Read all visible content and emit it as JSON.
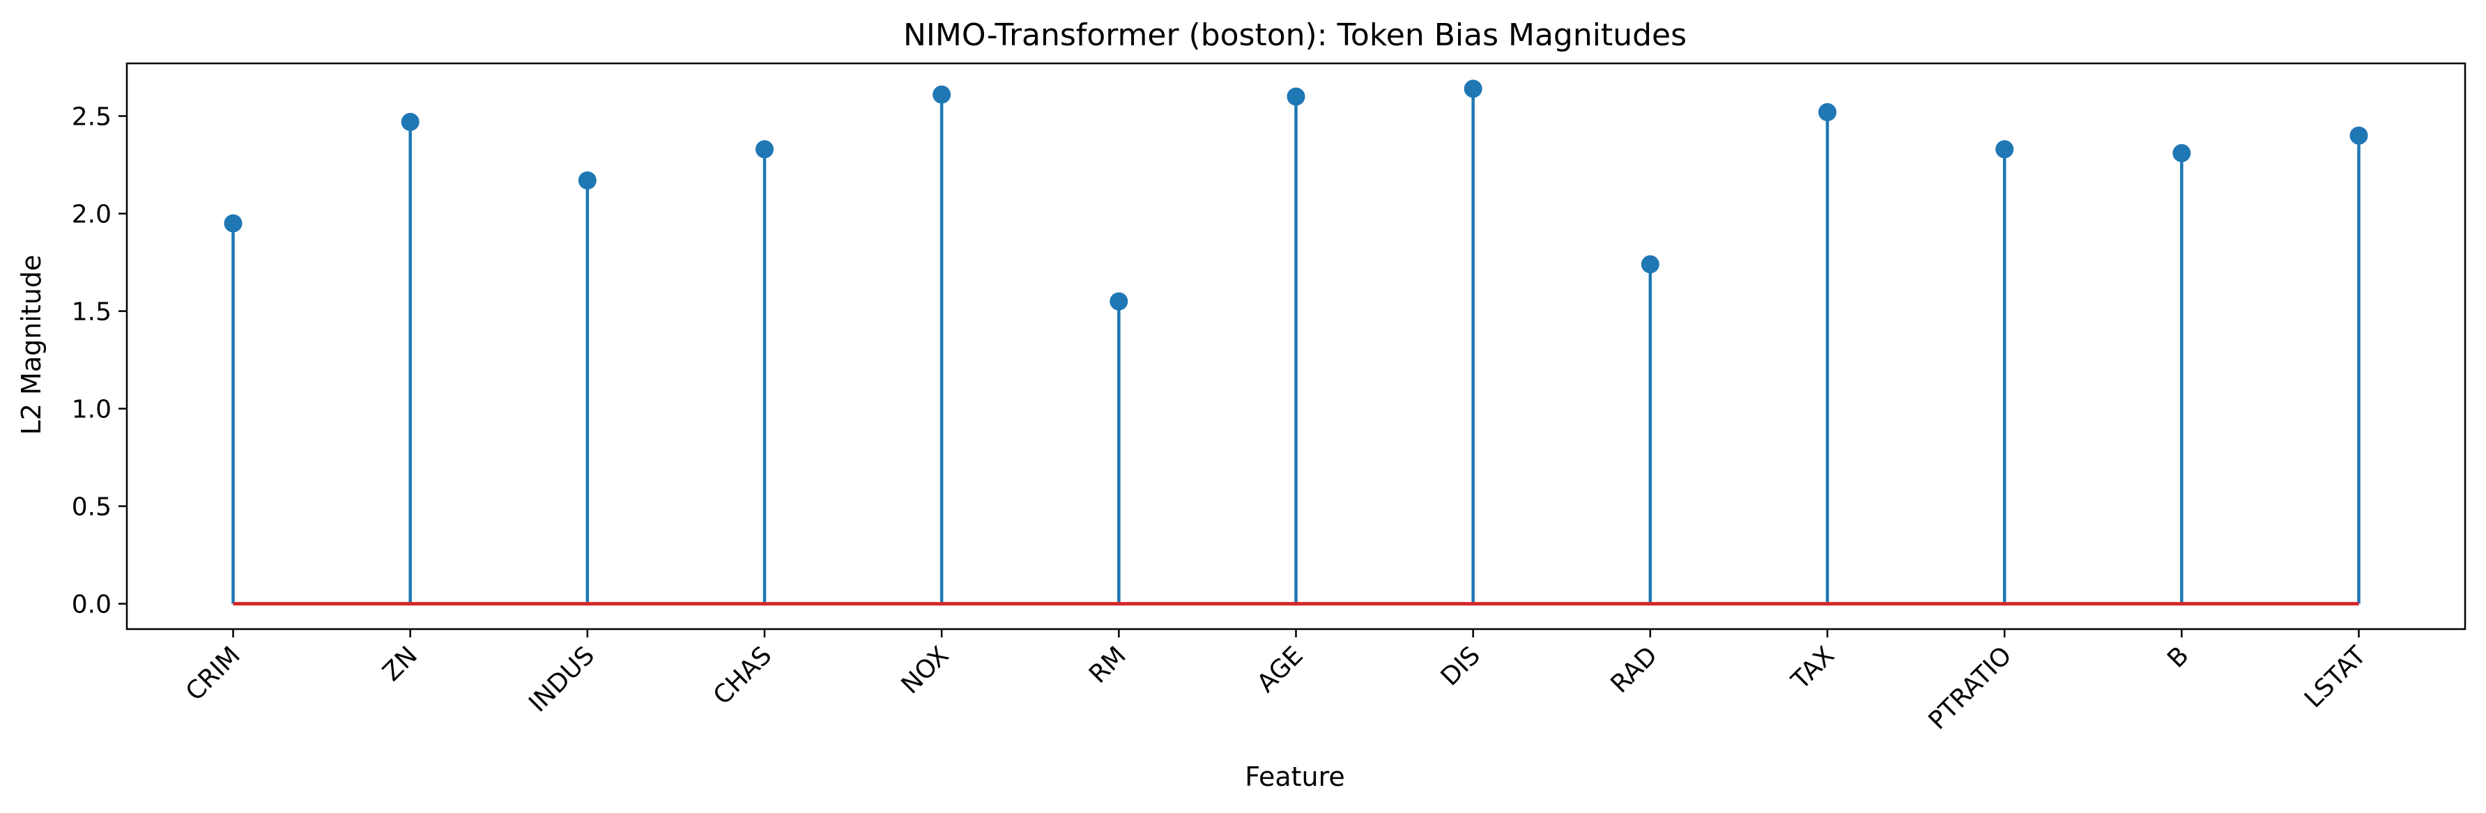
{
  "chart_data": {
    "type": "stem",
    "title": "NIMO-Transformer (boston): Token Bias Magnitudes",
    "xlabel": "Feature",
    "ylabel": "L2 Magnitude",
    "categories": [
      "CRIM",
      "ZN",
      "INDUS",
      "CHAS",
      "NOX",
      "RM",
      "AGE",
      "DIS",
      "RAD",
      "TAX",
      "PTRATIO",
      "B",
      "LSTAT"
    ],
    "values": [
      1.95,
      2.47,
      2.17,
      2.33,
      2.61,
      1.55,
      2.6,
      2.64,
      1.74,
      2.52,
      2.33,
      2.31,
      2.4
    ],
    "ylim": [
      -0.13,
      2.77
    ],
    "yticks": [
      0.0,
      0.5,
      1.0,
      1.5,
      2.0,
      2.5
    ],
    "ytick_labels": [
      "0.0",
      "0.5",
      "1.0",
      "1.5",
      "2.0",
      "2.5"
    ],
    "grid": false,
    "x_tick_rotation_deg": 45,
    "colors": {
      "stem": "#1f77b4",
      "marker": "#1f77b4",
      "baseline": "#d62728",
      "axes": "#000000",
      "background": "#ffffff"
    }
  }
}
